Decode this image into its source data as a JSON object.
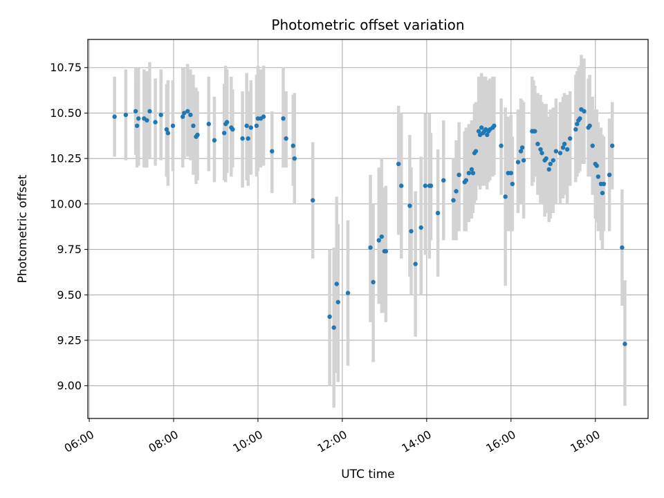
{
  "chart_data": {
    "type": "scatter",
    "title": "Photometric offset variation",
    "xlabel": "UTC time",
    "ylabel": "Photometric offset",
    "xlim": [
      "05:58",
      "19:15"
    ],
    "ylim": [
      8.82,
      10.905
    ],
    "x_ticks": [
      "06:00",
      "08:00",
      "10:00",
      "12:00",
      "14:00",
      "16:00",
      "18:00"
    ],
    "y_ticks": [
      "9.00",
      "9.25",
      "9.50",
      "9.75",
      "10.00",
      "10.25",
      "10.50",
      "10.75"
    ],
    "grid": true,
    "colors": {
      "points": "#1f77b4",
      "error_bars": "#d3d3d3",
      "grid": "#b0b0b0"
    },
    "series": [
      {
        "columns": [
          "time",
          "offset",
          "err_low",
          "err_high"
        ],
        "points": [
          [
            "06:36",
            10.48,
            10.26,
            10.7
          ],
          [
            "06:52",
            10.49,
            10.24,
            10.74
          ],
          [
            "07:06",
            10.51,
            10.27,
            10.75
          ],
          [
            "07:08",
            10.43,
            10.2,
            10.67
          ],
          [
            "07:10",
            10.47,
            10.21,
            10.75
          ],
          [
            "07:18",
            10.47,
            10.2,
            10.74
          ],
          [
            "07:22",
            10.46,
            10.2,
            10.73
          ],
          [
            "07:26",
            10.51,
            10.25,
            10.78
          ],
          [
            "07:34",
            10.45,
            10.21,
            10.69
          ],
          [
            "07:42",
            10.49,
            10.24,
            10.74
          ],
          [
            "07:50",
            10.41,
            10.15,
            10.66
          ],
          [
            "07:52",
            10.39,
            10.1,
            10.68
          ],
          [
            "07:59",
            10.43,
            10.18,
            10.68
          ],
          [
            "08:13",
            10.48,
            10.2,
            10.75
          ],
          [
            "08:15",
            10.5,
            10.25,
            10.75
          ],
          [
            "08:20",
            10.51,
            10.26,
            10.77
          ],
          [
            "08:24",
            10.49,
            10.24,
            10.74
          ],
          [
            "08:28",
            10.43,
            10.16,
            10.71
          ],
          [
            "08:32",
            10.37,
            10.11,
            10.64
          ],
          [
            "08:34",
            10.38,
            10.13,
            10.62
          ],
          [
            "08:50",
            10.44,
            10.18,
            10.7
          ],
          [
            "08:58",
            10.35,
            10.12,
            10.59
          ],
          [
            "09:12",
            10.39,
            10.13,
            10.66
          ],
          [
            "09:14",
            10.44,
            10.12,
            10.76
          ],
          [
            "09:16",
            10.45,
            10.17,
            10.74
          ],
          [
            "09:22",
            10.42,
            10.15,
            10.7
          ],
          [
            "09:24",
            10.41,
            10.2,
            10.63
          ],
          [
            "09:38",
            10.36,
            10.09,
            10.62
          ],
          [
            "09:44",
            10.43,
            10.13,
            10.72
          ],
          [
            "09:46",
            10.36,
            10.1,
            10.62
          ],
          [
            "09:50",
            10.42,
            10.16,
            10.68
          ],
          [
            "09:58",
            10.43,
            10.15,
            10.71
          ],
          [
            "10:00",
            10.47,
            10.18,
            10.76
          ],
          [
            "10:04",
            10.47,
            10.2,
            10.74
          ],
          [
            "10:08",
            10.48,
            10.21,
            10.76
          ],
          [
            "10:20",
            10.29,
            10.06,
            10.51
          ],
          [
            "10:36",
            10.47,
            10.2,
            10.75
          ],
          [
            "10:40",
            10.36,
            10.2,
            10.62
          ],
          [
            "10:50",
            10.32,
            10.1,
            10.6
          ],
          [
            "10:52",
            10.25,
            10.0,
            10.61
          ],
          [
            "11:18",
            10.02,
            9.7,
            10.34
          ],
          [
            "11:42",
            9.38,
            9.0,
            9.75
          ],
          [
            "11:48",
            9.32,
            8.88,
            9.76
          ],
          [
            "11:52",
            9.56,
            9.07,
            10.04
          ],
          [
            "11:54",
            9.46,
            9.02,
            9.89
          ],
          [
            "12:08",
            9.51,
            9.11,
            9.91
          ],
          [
            "12:40",
            9.76,
            9.35,
            10.16
          ],
          [
            "12:44",
            9.57,
            9.13,
            10.0
          ],
          [
            "12:52",
            9.8,
            9.45,
            10.2
          ],
          [
            "12:56",
            9.82,
            9.4,
            10.25
          ],
          [
            "13:00",
            9.74,
            9.4,
            10.09
          ],
          [
            "13:02",
            9.74,
            9.35,
            10.1
          ],
          [
            "13:20",
            10.22,
            9.83,
            10.54
          ],
          [
            "13:24",
            10.1,
            9.7,
            10.5
          ],
          [
            "13:36",
            9.99,
            9.6,
            10.38
          ],
          [
            "13:38",
            9.85,
            9.5,
            10.2
          ],
          [
            "13:44",
            9.67,
            9.27,
            10.07
          ],
          [
            "13:52",
            9.87,
            9.5,
            10.26
          ],
          [
            "13:58",
            10.1,
            9.72,
            10.5
          ],
          [
            "14:04",
            10.1,
            9.7,
            10.5
          ],
          [
            "14:06",
            10.1,
            9.8,
            10.39
          ],
          [
            "14:16",
            9.95,
            9.6,
            10.3
          ],
          [
            "14:24",
            10.13,
            9.8,
            10.46
          ],
          [
            "14:38",
            10.02,
            9.8,
            10.25
          ],
          [
            "14:42",
            10.07,
            9.8,
            10.35
          ],
          [
            "14:46",
            10.16,
            9.85,
            10.45
          ],
          [
            "14:54",
            10.12,
            9.85,
            10.4
          ],
          [
            "14:56",
            10.13,
            9.85,
            10.42
          ],
          [
            "15:00",
            10.17,
            9.9,
            10.44
          ],
          [
            "15:04",
            10.19,
            9.92,
            10.46
          ],
          [
            "15:06",
            10.17,
            9.95,
            10.4
          ],
          [
            "15:08",
            10.28,
            10.0,
            10.55
          ],
          [
            "15:10",
            10.29,
            10.02,
            10.56
          ],
          [
            "15:14",
            10.4,
            10.1,
            10.7
          ],
          [
            "15:16",
            10.38,
            10.08,
            10.68
          ],
          [
            "15:18",
            10.42,
            10.12,
            10.72
          ],
          [
            "15:20",
            10.39,
            10.1,
            10.68
          ],
          [
            "15:22",
            10.4,
            10.1,
            10.7
          ],
          [
            "15:24",
            10.41,
            10.12,
            10.7
          ],
          [
            "15:26",
            10.38,
            10.08,
            10.68
          ],
          [
            "15:28",
            10.4,
            10.12,
            10.68
          ],
          [
            "15:30",
            10.41,
            10.13,
            10.69
          ],
          [
            "15:34",
            10.42,
            10.15,
            10.7
          ],
          [
            "15:36",
            10.43,
            10.16,
            10.7
          ],
          [
            "15:46",
            10.32,
            10.05,
            10.58
          ],
          [
            "15:52",
            10.04,
            9.55,
            10.53
          ],
          [
            "15:56",
            10.17,
            9.85,
            10.48
          ],
          [
            "16:00",
            10.17,
            9.85,
            10.49
          ],
          [
            "16:02",
            10.11,
            9.85,
            10.37
          ],
          [
            "16:10",
            10.23,
            9.95,
            10.52
          ],
          [
            "16:14",
            10.29,
            10.0,
            10.58
          ],
          [
            "16:16",
            10.31,
            10.05,
            10.57
          ],
          [
            "16:18",
            10.24,
            9.92,
            10.56
          ],
          [
            "16:30",
            10.4,
            10.1,
            10.7
          ],
          [
            "16:32",
            10.4,
            10.12,
            10.68
          ],
          [
            "16:34",
            10.4,
            10.15,
            10.65
          ],
          [
            "16:38",
            10.33,
            10.05,
            10.61
          ],
          [
            "16:42",
            10.3,
            10.0,
            10.6
          ],
          [
            "16:44",
            10.28,
            10.0,
            10.56
          ],
          [
            "16:48",
            10.24,
            9.93,
            10.55
          ],
          [
            "16:50",
            10.25,
            9.95,
            10.55
          ],
          [
            "16:54",
            10.19,
            9.9,
            10.48
          ],
          [
            "16:56",
            10.22,
            9.92,
            10.52
          ],
          [
            "17:00",
            10.24,
            9.95,
            10.53
          ],
          [
            "17:04",
            10.29,
            10.0,
            10.58
          ],
          [
            "17:10",
            10.28,
            10.0,
            10.56
          ],
          [
            "17:14",
            10.31,
            10.03,
            10.59
          ],
          [
            "17:16",
            10.33,
            10.05,
            10.61
          ],
          [
            "17:20",
            10.3,
            10.0,
            10.6
          ],
          [
            "17:24",
            10.36,
            10.1,
            10.62
          ],
          [
            "17:32",
            10.41,
            10.12,
            10.71
          ],
          [
            "17:34",
            10.44,
            10.15,
            10.73
          ],
          [
            "17:36",
            10.46,
            10.17,
            10.75
          ],
          [
            "17:38",
            10.47,
            10.18,
            10.76
          ],
          [
            "17:40",
            10.52,
            10.22,
            10.82
          ],
          [
            "17:44",
            10.51,
            10.22,
            10.8
          ],
          [
            "17:50",
            10.42,
            10.15,
            10.69
          ],
          [
            "17:52",
            10.43,
            10.15,
            10.71
          ],
          [
            "17:56",
            10.32,
            10.05,
            10.59
          ],
          [
            "18:00",
            10.22,
            9.92,
            10.52
          ],
          [
            "18:02",
            10.21,
            9.9,
            10.52
          ],
          [
            "18:04",
            10.15,
            9.85,
            10.45
          ],
          [
            "18:08",
            10.11,
            9.8,
            10.42
          ],
          [
            "18:10",
            10.06,
            9.75,
            10.38
          ],
          [
            "18:12",
            10.11,
            9.85,
            10.37
          ],
          [
            "18:20",
            10.16,
            9.85,
            10.47
          ],
          [
            "18:24",
            10.32,
            10.08,
            10.56
          ],
          [
            "18:38",
            9.76,
            9.44,
            10.08
          ],
          [
            "18:42",
            9.23,
            8.89,
            9.58
          ]
        ]
      }
    ]
  }
}
